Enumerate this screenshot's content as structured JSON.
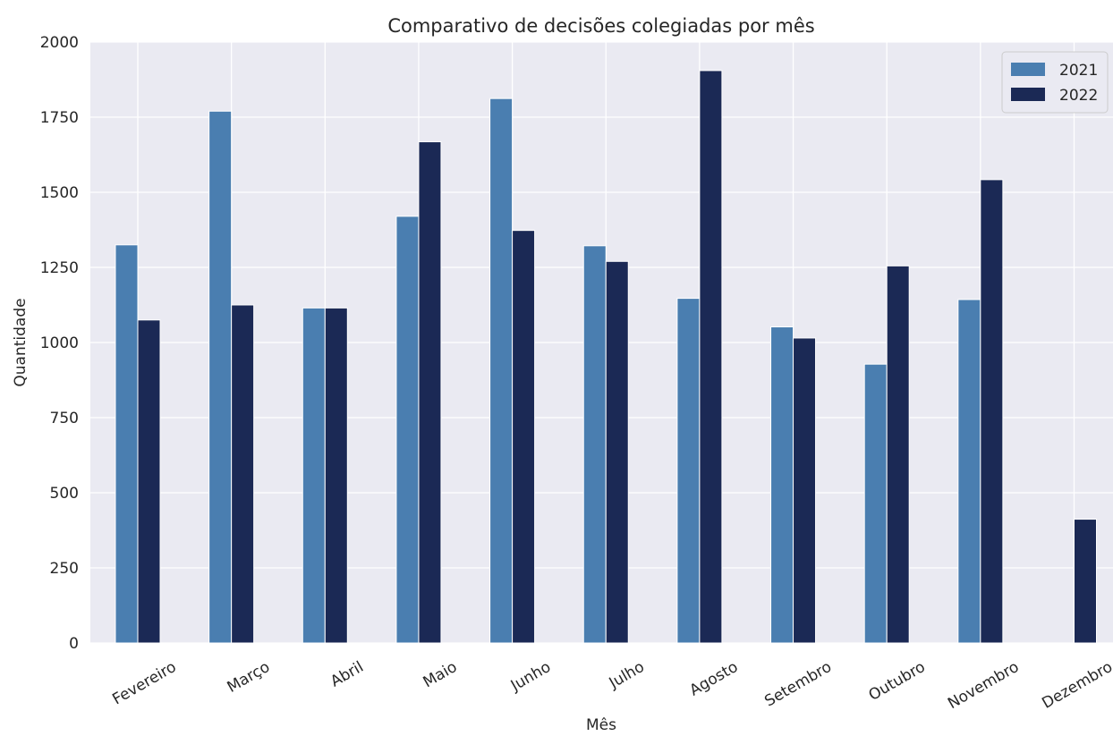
{
  "chart_data": {
    "type": "bar",
    "title": "Comparativo de decisões colegiadas por mês",
    "xlabel": "Mês",
    "ylabel": "Quantidade",
    "categories": [
      "Fevereiro",
      "Março",
      "Abril",
      "Maio",
      "Junho",
      "Julho",
      "Agosto",
      "Setembro",
      "Outubro",
      "Novembro",
      "Dezembro"
    ],
    "series": [
      {
        "name": "2021",
        "color": "#4a7eb0",
        "values": [
          1325,
          1770,
          1115,
          1420,
          1812,
          1322,
          1147,
          1052,
          928,
          1143,
          null
        ]
      },
      {
        "name": "2022",
        "color": "#1b2955",
        "values": [
          1075,
          1125,
          1115,
          1668,
          1373,
          1270,
          1905,
          1015,
          1255,
          1542,
          412
        ]
      }
    ],
    "ylim": [
      0,
      2000
    ],
    "yticks": [
      0,
      250,
      500,
      750,
      1000,
      1250,
      1500,
      1750,
      2000
    ],
    "grid": true,
    "legend_position": "top-right"
  }
}
